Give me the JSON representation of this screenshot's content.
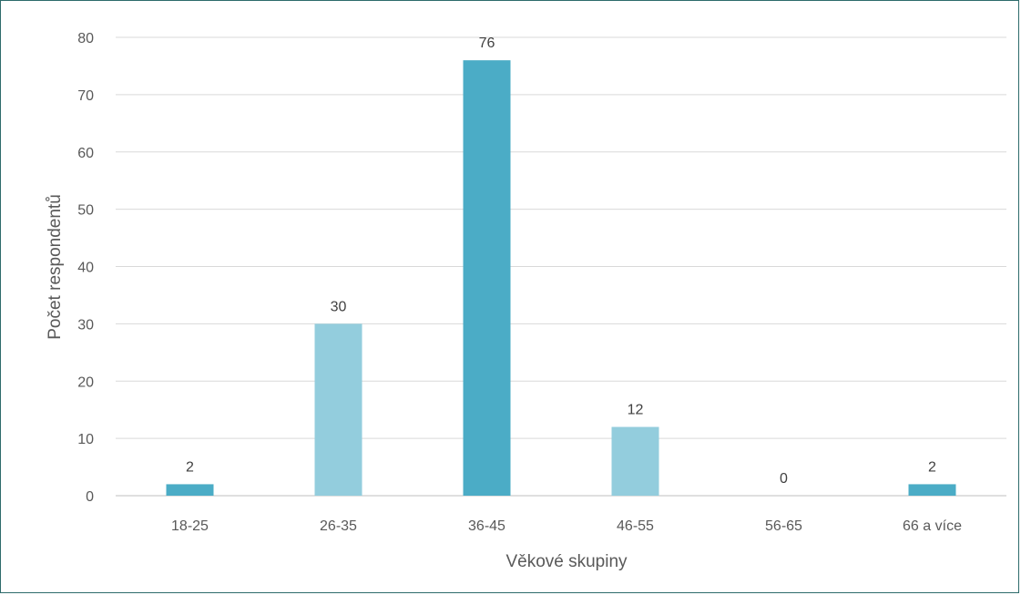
{
  "chart_data": {
    "type": "bar",
    "categories": [
      "18-25",
      "26-35",
      "36-45",
      "46-55",
      "56-65",
      "66 a více"
    ],
    "values": [
      2,
      30,
      76,
      12,
      0,
      2
    ],
    "data_labels": [
      "2",
      "30",
      "76",
      "12",
      "0",
      "2"
    ],
    "bar_colors": [
      "#4bacc6",
      "#93cddd",
      "#4bacc6",
      "#93cddd",
      "#4bacc6",
      "#4bacc6"
    ],
    "xlabel": "Věkové skupiny",
    "ylabel": "Počet respondentů",
    "ylim": [
      0,
      80
    ],
    "yticks": [
      0,
      10,
      20,
      30,
      40,
      50,
      60,
      70,
      80
    ],
    "grid": true,
    "legend": "none"
  }
}
